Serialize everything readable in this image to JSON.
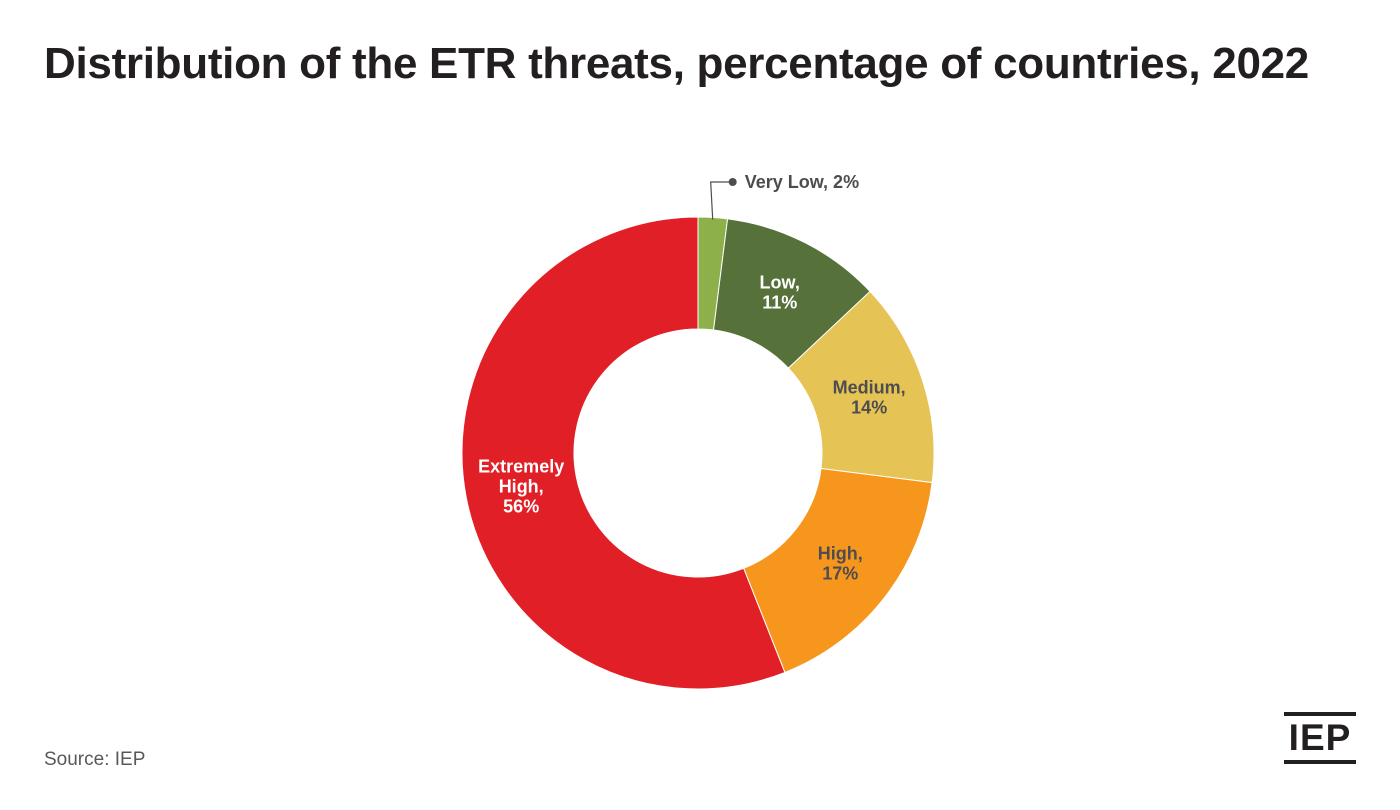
{
  "title": "Distribution of the ETR threats, percentage of countries, 2022",
  "source": "Source: IEP",
  "logo_text": "IEP",
  "chart_data": {
    "type": "pie",
    "donut": true,
    "title": "Distribution of the ETR threats, percentage of countries, 2022",
    "slices": [
      {
        "name": "Very Low",
        "value": 2,
        "color": "#8db04a",
        "label_lines": [
          "Very Low, 2%"
        ],
        "label_color": "#4d4d4f",
        "label_outside": true
      },
      {
        "name": "Low",
        "value": 11,
        "color": "#567139",
        "label_lines": [
          "Low,",
          "11%"
        ],
        "label_color": "#ffffff"
      },
      {
        "name": "Medium",
        "value": 14,
        "color": "#e5c355",
        "label_lines": [
          "Medium,",
          "14%"
        ],
        "label_color": "#4d4d4f"
      },
      {
        "name": "High",
        "value": 17,
        "color": "#f7961d",
        "label_lines": [
          "High,",
          "17%"
        ],
        "label_color": "#4d4d4f"
      },
      {
        "name": "Extremely High",
        "value": 56,
        "color": "#e11f27",
        "label_lines": [
          "Extremely",
          "High,",
          "56%"
        ],
        "label_color": "#ffffff"
      }
    ]
  }
}
